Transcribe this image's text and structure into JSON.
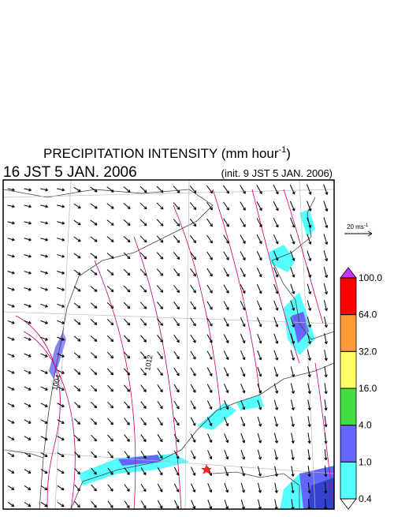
{
  "title": {
    "main": "PRECIPITATION INTENSITY (mm hour",
    "superscript": "-1",
    "close": ")"
  },
  "valid_time": "16 JST 5 JAN. 2006",
  "init_time": "(init. 9 JST 5 JAN. 2006)",
  "reference_vector": {
    "label": "20 ms",
    "superscript": "-1"
  },
  "contour_labels": [
    "1004",
    "1012"
  ],
  "colorbar": {
    "levels": [
      {
        "value": 100,
        "label": "100.0"
      },
      {
        "value": 64,
        "label": "64.0"
      },
      {
        "value": 32,
        "label": "32.0"
      },
      {
        "value": 16,
        "label": "16.0"
      },
      {
        "value": 4,
        "label": "4.0"
      },
      {
        "value": 1,
        "label": "1.0"
      },
      {
        "value": 0.4,
        "label": "0.4"
      }
    ],
    "colors": [
      "#ff0000",
      "#ff9933",
      "#ffff66",
      "#44dd44",
      "#6666ff",
      "#55ffff"
    ],
    "over_color": "#cc33ff",
    "under_color": "#ffffff"
  }
}
